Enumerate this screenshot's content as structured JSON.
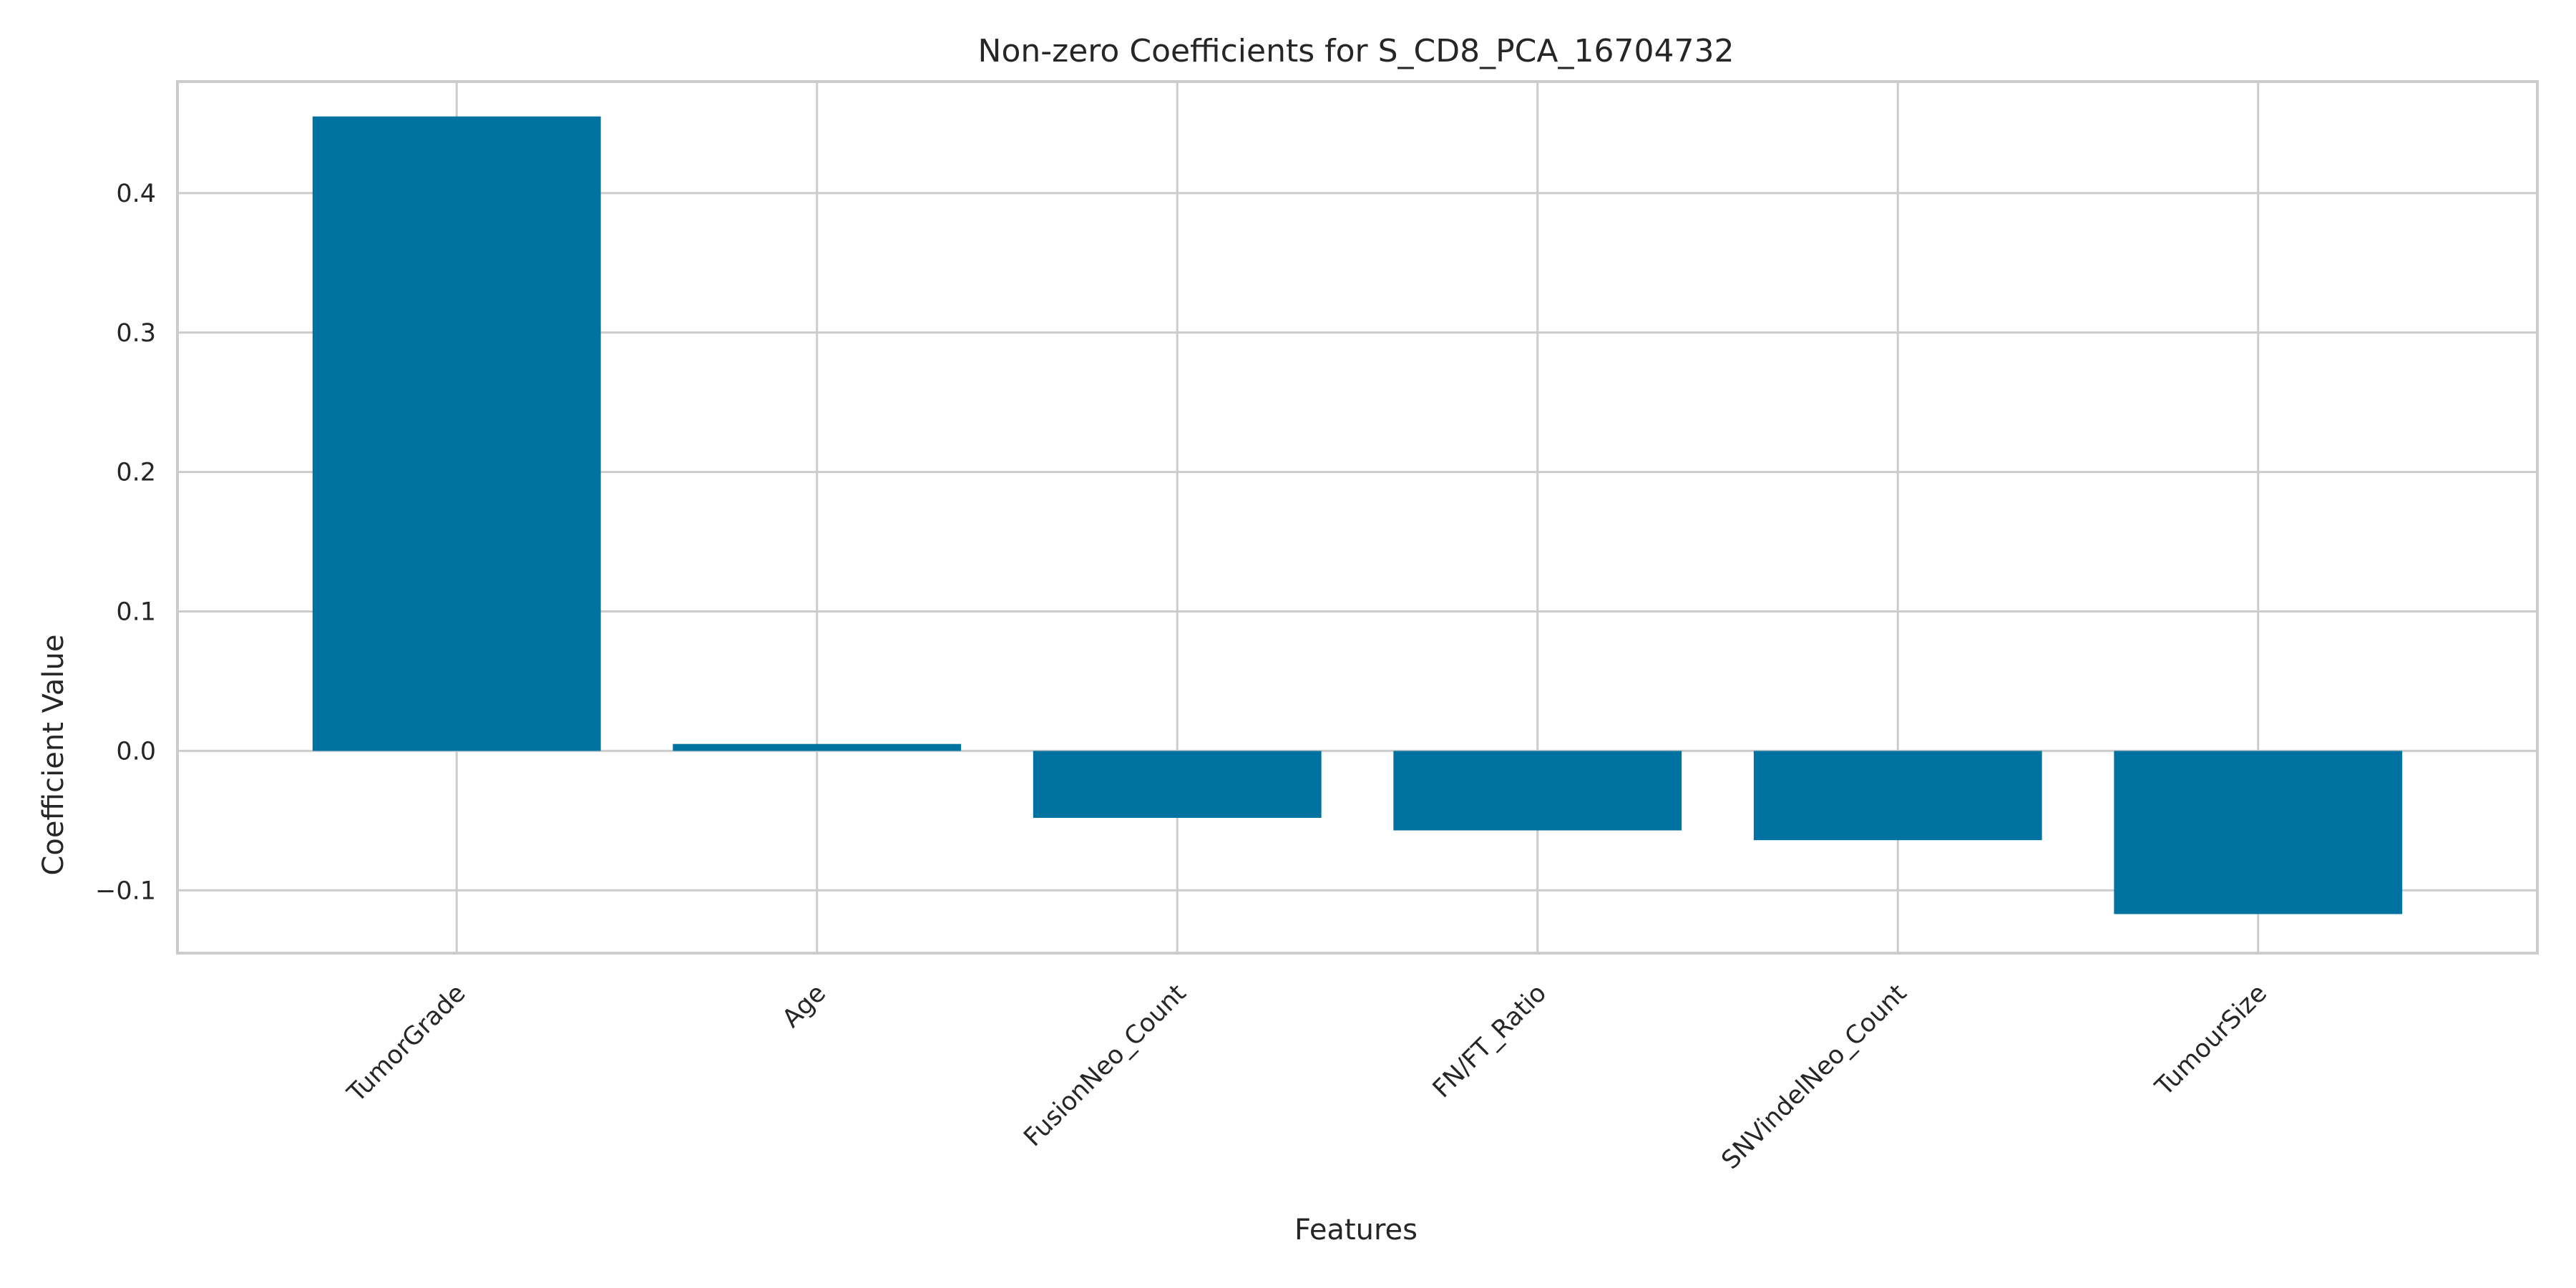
{
  "chart_data": {
    "type": "bar",
    "title": "Non-zero Coefficients for S_CD8_PCA_16704732",
    "xlabel": "Features",
    "ylabel": "Coefficient Value",
    "categories": [
      "TumorGrade",
      "Age",
      "FusionNeo_Count",
      "FN/FT_Ratio",
      "SNVindelNeo_Count",
      "TumourSize"
    ],
    "values": [
      0.455,
      0.005,
      -0.048,
      -0.057,
      -0.064,
      -0.117
    ],
    "ylim": [
      -0.145,
      0.48
    ],
    "yticks": [
      -0.1,
      0.0,
      0.1,
      0.2,
      0.3,
      0.4
    ],
    "ytick_labels": [
      "−0.1",
      "0.0",
      "0.1",
      "0.2",
      "0.3",
      "0.4"
    ],
    "grid": true,
    "legend": "none",
    "bar_color": "#0072a2"
  }
}
